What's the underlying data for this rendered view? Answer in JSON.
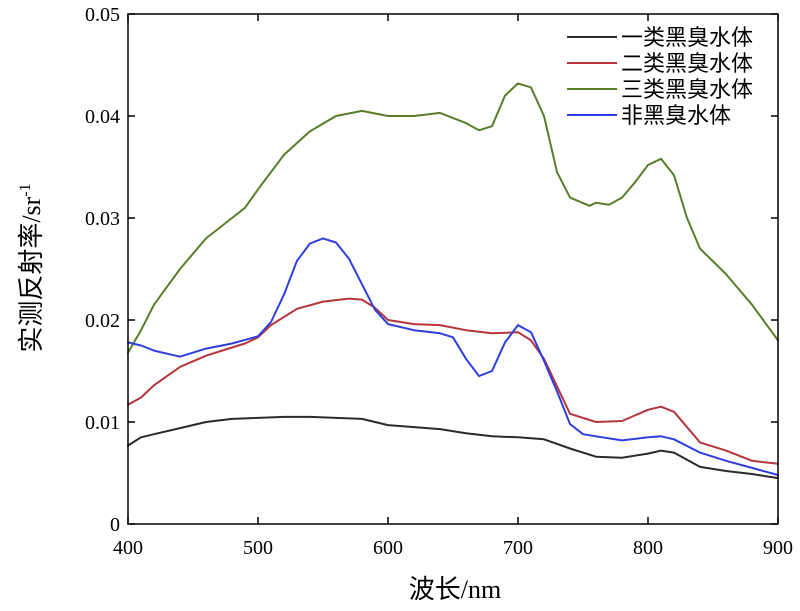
{
  "chart_data": {
    "type": "line",
    "title": "",
    "xlabel": "波长/nm",
    "ylabel": "实测反射率/sr",
    "ylabel_sup": "-1",
    "xlim": [
      400,
      900
    ],
    "ylim": [
      0,
      0.05
    ],
    "xticks": [
      "400",
      "500",
      "600",
      "700",
      "800",
      "900"
    ],
    "yticks": [
      "0",
      "0.01",
      "0.02",
      "0.03",
      "0.04",
      "0.05"
    ],
    "grid": false,
    "legend_position": "top-right",
    "series": [
      {
        "name": "一类黑臭水体",
        "color": "#2b2b2b",
        "points": [
          [
            400,
            0.0077
          ],
          [
            410,
            0.0085
          ],
          [
            420,
            0.0088
          ],
          [
            440,
            0.0094
          ],
          [
            460,
            0.01
          ],
          [
            480,
            0.0103
          ],
          [
            500,
            0.0104
          ],
          [
            520,
            0.0105
          ],
          [
            540,
            0.0105
          ],
          [
            560,
            0.0104
          ],
          [
            580,
            0.0103
          ],
          [
            600,
            0.0097
          ],
          [
            620,
            0.0095
          ],
          [
            640,
            0.0093
          ],
          [
            660,
            0.0089
          ],
          [
            680,
            0.0086
          ],
          [
            700,
            0.0085
          ],
          [
            720,
            0.0083
          ],
          [
            740,
            0.0074
          ],
          [
            760,
            0.0066
          ],
          [
            780,
            0.0065
          ],
          [
            800,
            0.0069
          ],
          [
            810,
            0.0072
          ],
          [
            820,
            0.007
          ],
          [
            840,
            0.0056
          ],
          [
            860,
            0.0052
          ],
          [
            880,
            0.0049
          ],
          [
            900,
            0.0045
          ]
        ]
      },
      {
        "name": "二类黑臭水体",
        "color": "#b5353a",
        "points": [
          [
            400,
            0.0117
          ],
          [
            410,
            0.0124
          ],
          [
            420,
            0.0136
          ],
          [
            440,
            0.0154
          ],
          [
            460,
            0.0165
          ],
          [
            480,
            0.0173
          ],
          [
            490,
            0.0177
          ],
          [
            500,
            0.0183
          ],
          [
            510,
            0.0195
          ],
          [
            530,
            0.0211
          ],
          [
            550,
            0.0218
          ],
          [
            570,
            0.0221
          ],
          [
            580,
            0.022
          ],
          [
            590,
            0.0212
          ],
          [
            600,
            0.02
          ],
          [
            620,
            0.0196
          ],
          [
            640,
            0.0195
          ],
          [
            660,
            0.019
          ],
          [
            680,
            0.0187
          ],
          [
            700,
            0.0188
          ],
          [
            710,
            0.018
          ],
          [
            720,
            0.0162
          ],
          [
            730,
            0.0135
          ],
          [
            740,
            0.0108
          ],
          [
            760,
            0.01
          ],
          [
            780,
            0.0101
          ],
          [
            800,
            0.0112
          ],
          [
            810,
            0.0115
          ],
          [
            820,
            0.011
          ],
          [
            840,
            0.008
          ],
          [
            860,
            0.0072
          ],
          [
            880,
            0.0062
          ],
          [
            900,
            0.0059
          ]
        ]
      },
      {
        "name": "三类黑臭水体",
        "color": "#5a7d2a",
        "points": [
          [
            400,
            0.0168
          ],
          [
            410,
            0.019
          ],
          [
            420,
            0.0215
          ],
          [
            440,
            0.025
          ],
          [
            460,
            0.028
          ],
          [
            480,
            0.03
          ],
          [
            490,
            0.031
          ],
          [
            500,
            0.0328
          ],
          [
            520,
            0.0362
          ],
          [
            540,
            0.0385
          ],
          [
            560,
            0.04
          ],
          [
            580,
            0.0405
          ],
          [
            600,
            0.04
          ],
          [
            620,
            0.04
          ],
          [
            640,
            0.0403
          ],
          [
            660,
            0.0393
          ],
          [
            670,
            0.0386
          ],
          [
            680,
            0.039
          ],
          [
            690,
            0.042
          ],
          [
            700,
            0.0432
          ],
          [
            710,
            0.0428
          ],
          [
            720,
            0.04
          ],
          [
            730,
            0.0345
          ],
          [
            740,
            0.032
          ],
          [
            755,
            0.0312
          ],
          [
            760,
            0.0315
          ],
          [
            770,
            0.0313
          ],
          [
            780,
            0.032
          ],
          [
            790,
            0.0335
          ],
          [
            800,
            0.0352
          ],
          [
            810,
            0.0358
          ],
          [
            820,
            0.0342
          ],
          [
            830,
            0.03
          ],
          [
            840,
            0.027
          ],
          [
            860,
            0.0245
          ],
          [
            880,
            0.0215
          ],
          [
            900,
            0.018
          ]
        ]
      },
      {
        "name": "非黑臭水体",
        "color": "#2e3fe0",
        "points": [
          [
            400,
            0.0178
          ],
          [
            410,
            0.0175
          ],
          [
            420,
            0.017
          ],
          [
            440,
            0.0164
          ],
          [
            460,
            0.0172
          ],
          [
            480,
            0.0177
          ],
          [
            500,
            0.0184
          ],
          [
            510,
            0.0198
          ],
          [
            520,
            0.0225
          ],
          [
            530,
            0.0258
          ],
          [
            540,
            0.0275
          ],
          [
            550,
            0.028
          ],
          [
            560,
            0.0276
          ],
          [
            570,
            0.026
          ],
          [
            580,
            0.0235
          ],
          [
            590,
            0.021
          ],
          [
            600,
            0.0196
          ],
          [
            620,
            0.019
          ],
          [
            640,
            0.0187
          ],
          [
            650,
            0.0183
          ],
          [
            660,
            0.0162
          ],
          [
            670,
            0.0145
          ],
          [
            680,
            0.015
          ],
          [
            690,
            0.0178
          ],
          [
            700,
            0.0195
          ],
          [
            710,
            0.0188
          ],
          [
            720,
            0.016
          ],
          [
            730,
            0.013
          ],
          [
            740,
            0.0098
          ],
          [
            750,
            0.0088
          ],
          [
            760,
            0.0086
          ],
          [
            780,
            0.0082
          ],
          [
            800,
            0.0085
          ],
          [
            810,
            0.0086
          ],
          [
            820,
            0.0083
          ],
          [
            840,
            0.007
          ],
          [
            860,
            0.0062
          ],
          [
            880,
            0.0055
          ],
          [
            900,
            0.0048
          ]
        ]
      }
    ]
  }
}
